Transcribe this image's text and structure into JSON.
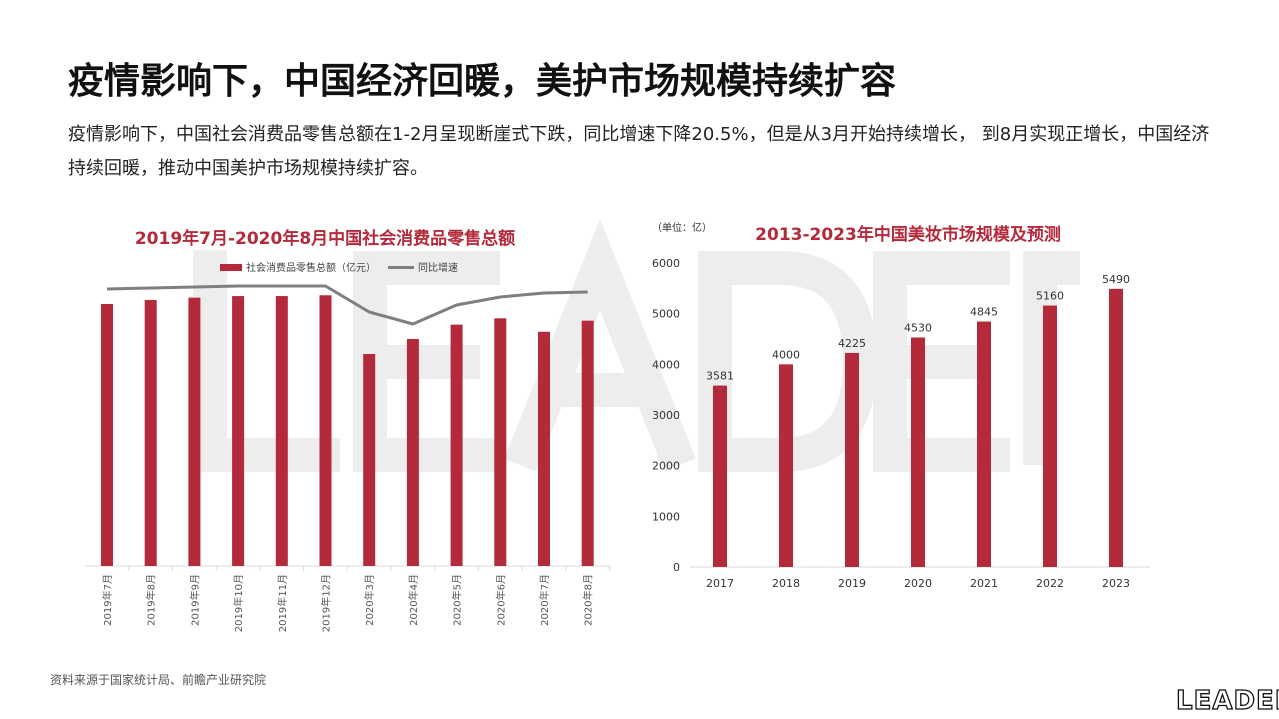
{
  "slide": {
    "title": "疫情影响下，中国经济回暖，美护市场规模持续扩容",
    "description": "疫情影响下，中国社会消费品零售总额在1-2月呈现断崖式下跌，同比增速下降20.5%，但是从3月开始持续增长， 到8月实现正增长，中国经济持续回暖，推动中国美护市场规模持续扩容。",
    "source": "资料来源于国家统计局、前瞻产业研究院",
    "logo": "LEADER",
    "watermark": "LEADER"
  },
  "colors": {
    "bar": "#b32a3a",
    "line": "#7f7f7f",
    "title": "#b32a3a",
    "watermark": "#ededed"
  },
  "chart_data": [
    {
      "type": "bar+line",
      "title": "2019年7月-2020年8月中国社会消费品零售总额",
      "legend": [
        "社会消费品零售总额（亿元）",
        "同比增速"
      ],
      "legend_position": "top",
      "categories": [
        "2019年7月",
        "2019年8月",
        "2019年9月",
        "2019年10月",
        "2019年11月",
        "2019年12月",
        "2020年3月",
        "2020年4月",
        "2020年5月",
        "2020年6月",
        "2020年7月",
        "2020年8月"
      ],
      "series": [
        {
          "name": "社会消费品零售总额（亿元）",
          "type": "bar",
          "values": [
            33000,
            33500,
            33800,
            34000,
            34000,
            34100,
            26700,
            28600,
            30400,
            31200,
            29500,
            30900
          ]
        },
        {
          "name": "同比增速",
          "type": "line",
          "values": [
            8.0,
            8.2,
            8.4,
            8.6,
            8.6,
            8.6,
            3.4,
            1.0,
            4.8,
            6.4,
            7.2,
            7.4
          ]
        }
      ],
      "y_axis_shown": false,
      "grid": false
    },
    {
      "type": "bar",
      "title": "2013-2023年中国美妆市场规模及预测",
      "unit_label": "（单位：亿）",
      "categories": [
        "2017",
        "2018",
        "2019",
        "2020",
        "2021",
        "2022",
        "2023"
      ],
      "values": [
        3581,
        4000,
        4225,
        4530,
        4845,
        5160,
        5490
      ],
      "data_labels": [
        "3581",
        "4000",
        "4225",
        "4530",
        "4845",
        "5160",
        "5490"
      ],
      "ylim": [
        0,
        6000
      ],
      "yticks": [
        "0",
        "1000",
        "2000",
        "3000",
        "4000",
        "5000",
        "6000"
      ],
      "grid": false
    }
  ]
}
